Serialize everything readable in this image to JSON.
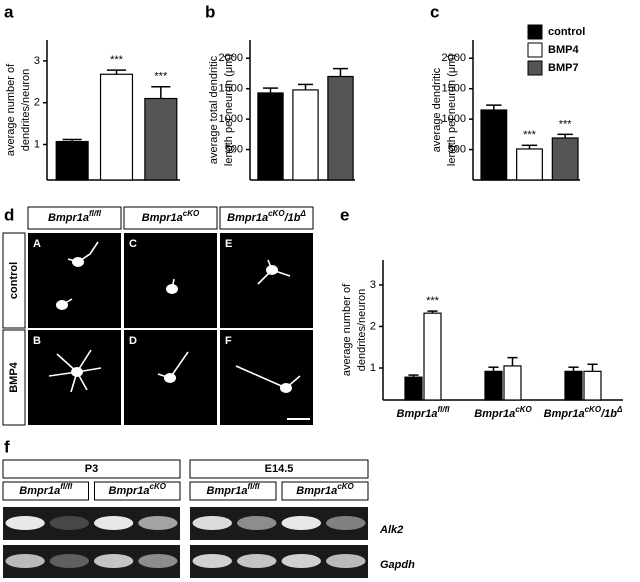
{
  "panel_labels": [
    "a",
    "b",
    "c",
    "d",
    "e",
    "f"
  ],
  "chart_data": [
    {
      "type": "bar",
      "ylabel": [
        "average number of",
        "dendrites/neuron"
      ],
      "ylim": [
        0.15,
        3.5
      ],
      "yticks": [
        1,
        2,
        3
      ],
      "series": [
        {
          "color": "#000000",
          "values": [
            1.07
          ],
          "errors": [
            0.05
          ]
        },
        {
          "color": "#ffffff",
          "values": [
            2.68
          ],
          "errors": [
            0.1
          ],
          "annotations": [
            "***"
          ]
        },
        {
          "color": "#555555",
          "values": [
            2.1
          ],
          "errors": [
            0.28
          ],
          "annotations": [
            "***"
          ]
        }
      ]
    },
    {
      "type": "bar",
      "ylabel": [
        "average total dendritic",
        "length per neuron (μm)"
      ],
      "ylim": [
        0,
        2300
      ],
      "yticks": [
        500,
        1000,
        1500,
        2000
      ],
      "series": [
        {
          "color": "#000000",
          "values": [
            1430
          ],
          "errors": [
            80
          ]
        },
        {
          "color": "#ffffff",
          "values": [
            1480
          ],
          "errors": [
            90
          ]
        },
        {
          "color": "#555555",
          "values": [
            1700
          ],
          "errors": [
            130
          ]
        }
      ]
    },
    {
      "type": "bar",
      "ylabel": [
        "average dendritic",
        "length per neuron (μm)"
      ],
      "ylim": [
        0,
        2300
      ],
      "yticks": [
        500,
        1000,
        1500,
        2000
      ],
      "legend": "upper right",
      "series": [
        {
          "name": "control",
          "color": "#000000",
          "values": [
            1150
          ],
          "errors": [
            80
          ]
        },
        {
          "name": "BMP4",
          "color": "#ffffff",
          "values": [
            510
          ],
          "errors": [
            60
          ],
          "annotations": [
            "***"
          ]
        },
        {
          "name": "BMP7",
          "color": "#555555",
          "values": [
            690
          ],
          "errors": [
            60
          ],
          "annotations": [
            "***"
          ]
        }
      ]
    },
    {
      "type": "bar",
      "ylabel": [
        "average number of",
        "dendrites/neuron"
      ],
      "ylim": [
        0.23,
        3.6
      ],
      "yticks": [
        1,
        2,
        3
      ],
      "categories": [
        [
          "Bmpr1a",
          {
            "sup": "fl/fl"
          }
        ],
        [
          "Bmpr1a",
          {
            "sup": "cKO"
          }
        ],
        [
          "Bmpr1a",
          {
            "sup": "cKO"
          },
          "/1b",
          {
            "sup": "Δ"
          }
        ]
      ],
      "series": [
        {
          "color": "#000000",
          "values": [
            0.78,
            0.92,
            0.92
          ],
          "errors": [
            0.05,
            0.1,
            0.1
          ]
        },
        {
          "color": "#ffffff",
          "values": [
            2.32,
            1.05,
            0.92
          ],
          "errors": [
            0.05,
            0.2,
            0.17
          ],
          "annotations": [
            "***",
            null,
            null
          ]
        }
      ]
    }
  ],
  "images": {
    "columns": [
      [
        "Bmpr1a",
        {
          "sup": "fl/fl"
        }
      ],
      [
        "Bmpr1a",
        {
          "sup": "cKO"
        }
      ],
      [
        "Bmpr1a",
        {
          "sup": "cKO"
        },
        "/1b",
        {
          "sup": "Δ"
        }
      ]
    ],
    "rows": [
      "control",
      "BMP4"
    ],
    "tiles": [
      "A",
      "C",
      "E",
      "B",
      "D",
      "F"
    ]
  },
  "gel": {
    "groups": [
      {
        "label": "P3",
        "lanes": [
          [
            "Bmpr1a",
            {
              "sup": "fl/fl"
            }
          ],
          [
            "Bmpr1a",
            {
              "sup": "cKO"
            }
          ]
        ]
      },
      {
        "label": "E14.5",
        "lanes": [
          [
            "Bmpr1a",
            {
              "sup": "fl/fl"
            }
          ],
          [
            "Bmpr1a",
            {
              "sup": "cKO"
            }
          ]
        ]
      }
    ],
    "rows": [
      "Alk2",
      "Gapdh"
    ]
  }
}
